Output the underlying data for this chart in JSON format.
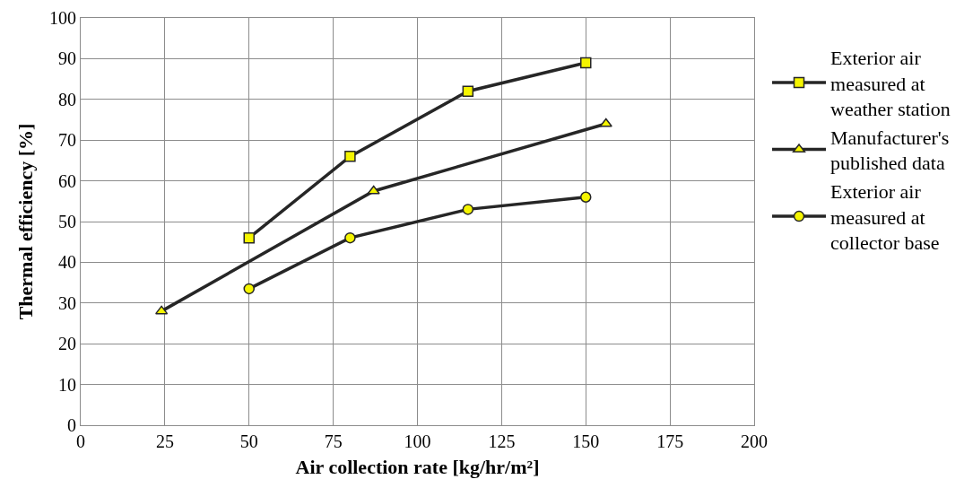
{
  "chart_data": {
    "type": "line",
    "xlabel": "Air collection rate [kg/hr/m²]",
    "ylabel": "Thermal efficiency [%]",
    "xlim": [
      0,
      200
    ],
    "xticks": [
      0,
      25,
      50,
      75,
      100,
      125,
      150,
      175,
      200
    ],
    "ylim": [
      0,
      100
    ],
    "yticks": [
      0,
      10,
      20,
      30,
      40,
      50,
      60,
      70,
      80,
      90,
      100
    ],
    "grid": true,
    "legend": "right",
    "line_style": "solid",
    "series": [
      {
        "name": "Exterior air measured at weather station",
        "color": "#262626",
        "marker": "square",
        "x": [
          50,
          80,
          115,
          150
        ],
        "values": [
          46,
          66,
          82,
          89
        ],
        "colors": [
          "#f5f500",
          "#f5f500",
          "#f5f500",
          "#f5f500"
        ]
      },
      {
        "name": "Manufacturer's published data",
        "color": "#262626",
        "marker": "triangle",
        "x": [
          24,
          87,
          156
        ],
        "values": [
          28,
          57.5,
          74
        ],
        "colors": [
          "#f5f500",
          "#f5f500",
          "#f5f500"
        ]
      },
      {
        "name": "Exterior air measured at collector base",
        "color": "#262626",
        "marker": "circle",
        "x": [
          50,
          80,
          115,
          150
        ],
        "values": [
          33.5,
          46,
          53,
          56
        ],
        "colors": [
          "#f5f500",
          "#f5f500",
          "#f5f500",
          "#f5f500"
        ]
      }
    ]
  }
}
